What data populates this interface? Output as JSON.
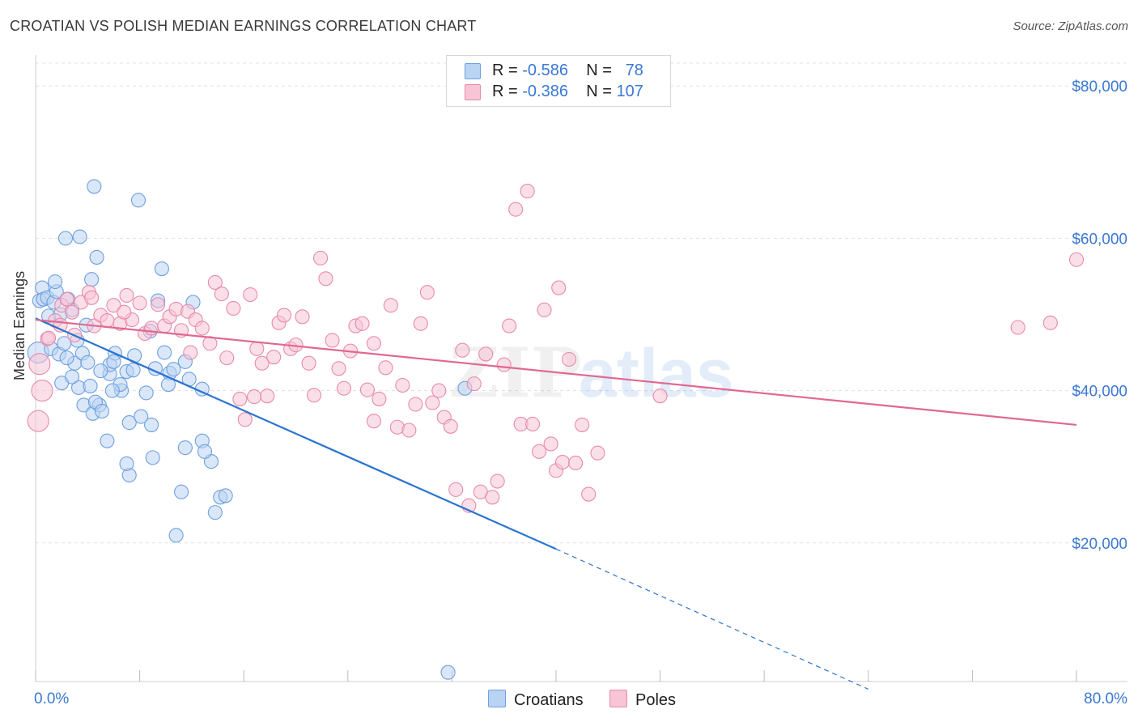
{
  "title": "CROATIAN VS POLISH MEDIAN EARNINGS CORRELATION CHART",
  "source": "Source: ZipAtlas.com",
  "legend": {
    "rows": [
      {
        "r_label": "R = ",
        "r_value": "-0.586",
        "n_label": "N = ",
        "n_value": "78"
      },
      {
        "r_label": "R = ",
        "r_value": "-0.386",
        "n_label": "N = ",
        "n_value": "107"
      }
    ]
  },
  "bottom_legend": {
    "croatians": "Croatians",
    "poles": "Poles"
  },
  "colors": {
    "croatians_fill": "#b9d3f3",
    "croatians_stroke": "#6fa0e0",
    "croatians_line": "#2a74d0",
    "poles_fill": "#f7c5d6",
    "poles_stroke": "#e88aab",
    "poles_line": "#e06891",
    "tick_text": "#3a78d4",
    "grid": "#e0e0e0"
  },
  "watermark": {
    "zip": "ZIP",
    "atlas": "atlas"
  },
  "chart_data": {
    "type": "scatter",
    "title": "CROATIAN VS POLISH MEDIAN EARNINGS CORRELATION CHART",
    "xlabel": "",
    "ylabel": "Median Earnings",
    "xlim": [
      0,
      80
    ],
    "ylim": [
      1800,
      83000
    ],
    "x_tick_labels": [
      "0.0%",
      "80.0%"
    ],
    "y_tick_labels": [
      "$20,000",
      "$40,000",
      "$60,000",
      "$80,000"
    ],
    "y_ticks": [
      20000,
      40000,
      60000,
      80000
    ],
    "series": [
      {
        "name": "Croatians",
        "points": [
          [
            0.2,
            45000
          ],
          [
            0.3,
            51800
          ],
          [
            0.5,
            53500
          ],
          [
            0.6,
            52000
          ],
          [
            0.9,
            52200
          ],
          [
            1.0,
            49800
          ],
          [
            1.2,
            45500
          ],
          [
            1.4,
            51600
          ],
          [
            1.6,
            53000
          ],
          [
            1.8,
            44800
          ],
          [
            2.0,
            41000
          ],
          [
            2.2,
            46200
          ],
          [
            2.5,
            52000
          ],
          [
            2.8,
            50600
          ],
          [
            3.0,
            43600
          ],
          [
            3.3,
            40400
          ],
          [
            3.6,
            44900
          ],
          [
            3.7,
            38100
          ],
          [
            4.2,
            40600
          ],
          [
            4.4,
            37000
          ],
          [
            4.9,
            38100
          ],
          [
            5.5,
            33400
          ],
          [
            5.7,
            42200
          ],
          [
            6.6,
            40000
          ],
          [
            7.0,
            42500
          ],
          [
            7.2,
            35800
          ],
          [
            7.5,
            42700
          ],
          [
            8.5,
            39700
          ],
          [
            8.9,
            35500
          ],
          [
            9.0,
            31200
          ],
          [
            9.9,
            45000
          ],
          [
            10.3,
            42300
          ],
          [
            10.2,
            40800
          ],
          [
            11.5,
            32500
          ],
          [
            11.8,
            41500
          ],
          [
            12.8,
            33400
          ],
          [
            13.5,
            30700
          ],
          [
            13.8,
            24000
          ],
          [
            14.2,
            26000
          ],
          [
            4.5,
            66800
          ],
          [
            7.9,
            65000
          ],
          [
            3.4,
            60200
          ],
          [
            2.3,
            60000
          ],
          [
            4.7,
            57500
          ],
          [
            9.7,
            56000
          ],
          [
            4.3,
            54600
          ],
          [
            5.7,
            43400
          ],
          [
            12.1,
            51600
          ],
          [
            12.8,
            40200
          ],
          [
            8.1,
            36600
          ],
          [
            4.6,
            38500
          ],
          [
            6.1,
            44900
          ],
          [
            14.6,
            26200
          ],
          [
            10.8,
            21000
          ],
          [
            11.2,
            26700
          ],
          [
            13.0,
            32000
          ],
          [
            7.2,
            28900
          ],
          [
            7.0,
            30400
          ],
          [
            6.5,
            40800
          ],
          [
            3.9,
            48600
          ],
          [
            1.9,
            50000
          ],
          [
            2.4,
            44300
          ],
          [
            3.2,
            46600
          ],
          [
            1.5,
            54300
          ],
          [
            5.0,
            42600
          ],
          [
            6.0,
            43800
          ],
          [
            7.6,
            44600
          ],
          [
            8.8,
            47800
          ],
          [
            9.2,
            42900
          ],
          [
            10.6,
            42800
          ],
          [
            11.5,
            43800
          ],
          [
            5.1,
            37300
          ],
          [
            2.8,
            41800
          ],
          [
            4.0,
            43700
          ],
          [
            5.9,
            40000
          ],
          [
            33.0,
            40300
          ],
          [
            31.7,
            3000
          ],
          [
            9.4,
            51800
          ]
        ]
      },
      {
        "name": "Poles",
        "points": [
          [
            0.2,
            36000
          ],
          [
            0.3,
            43500
          ],
          [
            0.5,
            40000
          ],
          [
            0.9,
            46800
          ],
          [
            1.5,
            49200
          ],
          [
            2.0,
            51200
          ],
          [
            2.4,
            52000
          ],
          [
            2.8,
            50300
          ],
          [
            3.5,
            51600
          ],
          [
            4.1,
            52900
          ],
          [
            4.5,
            48500
          ],
          [
            5.0,
            49900
          ],
          [
            5.5,
            49200
          ],
          [
            6.0,
            51200
          ],
          [
            6.5,
            48800
          ],
          [
            7.0,
            52500
          ],
          [
            7.4,
            49300
          ],
          [
            8.0,
            51500
          ],
          [
            8.4,
            47500
          ],
          [
            8.9,
            48200
          ],
          [
            9.4,
            51300
          ],
          [
            9.9,
            48500
          ],
          [
            10.3,
            49700
          ],
          [
            10.8,
            50700
          ],
          [
            11.2,
            47900
          ],
          [
            11.7,
            50400
          ],
          [
            12.3,
            49300
          ],
          [
            12.8,
            48200
          ],
          [
            13.4,
            46200
          ],
          [
            13.8,
            54200
          ],
          [
            14.3,
            52700
          ],
          [
            14.7,
            44300
          ],
          [
            15.2,
            50800
          ],
          [
            15.7,
            38900
          ],
          [
            16.1,
            36200
          ],
          [
            16.5,
            52600
          ],
          [
            17.0,
            45500
          ],
          [
            17.4,
            43600
          ],
          [
            17.8,
            39300
          ],
          [
            18.3,
            44400
          ],
          [
            18.7,
            48900
          ],
          [
            19.1,
            49900
          ],
          [
            19.6,
            45500
          ],
          [
            20.0,
            46000
          ],
          [
            20.5,
            49700
          ],
          [
            21.0,
            43600
          ],
          [
            21.4,
            39400
          ],
          [
            21.9,
            57400
          ],
          [
            22.3,
            54700
          ],
          [
            22.8,
            46600
          ],
          [
            23.3,
            42900
          ],
          [
            23.7,
            40300
          ],
          [
            24.2,
            45200
          ],
          [
            24.6,
            48500
          ],
          [
            25.1,
            48800
          ],
          [
            25.5,
            40100
          ],
          [
            26.0,
            46200
          ],
          [
            26.4,
            38900
          ],
          [
            26.9,
            43000
          ],
          [
            27.3,
            51200
          ],
          [
            27.8,
            35200
          ],
          [
            28.2,
            40700
          ],
          [
            28.7,
            34800
          ],
          [
            29.2,
            38200
          ],
          [
            29.6,
            48800
          ],
          [
            30.1,
            52900
          ],
          [
            30.5,
            38400
          ],
          [
            31.0,
            40000
          ],
          [
            31.4,
            36500
          ],
          [
            31.9,
            35300
          ],
          [
            32.3,
            27000
          ],
          [
            32.8,
            45300
          ],
          [
            33.3,
            24900
          ],
          [
            33.7,
            40900
          ],
          [
            34.2,
            26700
          ],
          [
            34.6,
            44800
          ],
          [
            35.1,
            26000
          ],
          [
            35.5,
            28100
          ],
          [
            36.0,
            43400
          ],
          [
            36.4,
            48500
          ],
          [
            36.9,
            63800
          ],
          [
            37.3,
            35600
          ],
          [
            37.8,
            66200
          ],
          [
            38.2,
            35600
          ],
          [
            38.7,
            32000
          ],
          [
            39.1,
            50600
          ],
          [
            39.6,
            33000
          ],
          [
            40.0,
            29500
          ],
          [
            40.5,
            30600
          ],
          [
            41.0,
            44100
          ],
          [
            41.5,
            30500
          ],
          [
            42.0,
            35500
          ],
          [
            42.5,
            26400
          ],
          [
            43.2,
            31800
          ],
          [
            48.0,
            39300
          ],
          [
            1.9,
            48600
          ],
          [
            1.0,
            46900
          ],
          [
            3.0,
            47300
          ],
          [
            4.3,
            52200
          ],
          [
            6.8,
            50300
          ],
          [
            11.9,
            45000
          ],
          [
            16.8,
            39200
          ],
          [
            26.0,
            36000
          ],
          [
            75.5,
            48300
          ],
          [
            78.0,
            48900
          ],
          [
            80.0,
            57200
          ],
          [
            40.2,
            53500
          ]
        ]
      }
    ],
    "trend_lines": [
      {
        "name": "Croatians",
        "solid": [
          [
            0,
            49500
          ],
          [
            40,
            19200
          ]
        ],
        "dashed": [
          [
            40,
            19200
          ],
          [
            64,
            800
          ]
        ]
      },
      {
        "name": "Poles",
        "solid": [
          [
            0,
            49300
          ],
          [
            80,
            35500
          ]
        ]
      }
    ],
    "grid": true,
    "legend_placement": "top-center"
  }
}
